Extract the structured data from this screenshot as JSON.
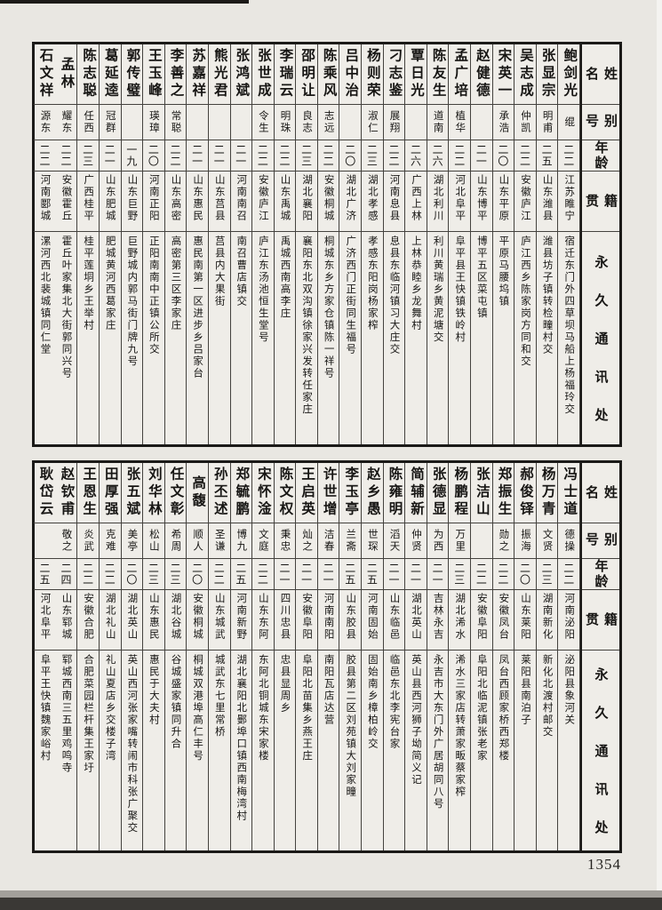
{
  "page_number": "1354",
  "header": {
    "name": "姓名",
    "alias": "别号",
    "age": "年龄",
    "native": "籍贯",
    "address": "永久通讯处"
  },
  "tables": [
    {
      "people": [
        {
          "name": "鲍剑光",
          "alias": "绲",
          "age": "二二",
          "native": "江苏睢宁",
          "address": "宿迁东门外四草坝马船上杨福玲交"
        },
        {
          "name": "张显宗",
          "alias": "明甫",
          "age": "二五",
          "native": "山东潍县",
          "address": "潍县坊子镇转检疃村交"
        },
        {
          "name": "吴志成",
          "alias": "仲凯",
          "age": "二二",
          "native": "安徽庐江",
          "address": "庐江西乡陈家岗方同和交"
        },
        {
          "name": "宋英一",
          "alias": "承浩",
          "age": "二〇",
          "native": "山东平原",
          "address": "平原马腰坞镇"
        },
        {
          "name": "赵健德",
          "alias": "",
          "age": "二一",
          "native": "山东博平",
          "address": "博平五区菜屯镇"
        },
        {
          "name": "孟广培",
          "alias": "植华",
          "age": "二二",
          "native": "河北阜平",
          "address": "阜平县王快镇铁岭村"
        },
        {
          "name": "陈友生",
          "alias": "道南",
          "age": "二六",
          "native": "湖北利川",
          "address": "利川黄瑞乡黄泥塘交"
        },
        {
          "name": "覃日光",
          "alias": "",
          "age": "二六",
          "native": "广西上林",
          "address": "上林恭睦乡龙舞村"
        },
        {
          "name": "刁志鉴",
          "alias": "展翔",
          "age": "二二",
          "native": "河南息县",
          "address": "息县东临河镇习大庄交"
        },
        {
          "name": "杨则荣",
          "alias": "淑仁",
          "age": "二三",
          "native": "湖北孝感",
          "address": "孝感东阳岗杨家榨"
        },
        {
          "name": "吕中治",
          "alias": "",
          "age": "二〇",
          "native": "湖北广济",
          "address": "广济西门正街同生福号"
        },
        {
          "name": "陈乘风",
          "alias": "志远",
          "age": "二二",
          "native": "安徽桐城",
          "address": "桐城东乡方家仓镇陈一祥号"
        },
        {
          "name": "邵明让",
          "alias": "良志",
          "age": "二三",
          "native": "湖北襄阳",
          "address": "襄阳东北双沟镇徐家兴发转任家庄"
        },
        {
          "name": "李瑞云",
          "alias": "明珠",
          "age": "二二",
          "native": "山东禹城",
          "address": "禹城西南高李庄"
        },
        {
          "name": "张世成",
          "alias": "令生",
          "age": "二二",
          "native": "安徽庐江",
          "address": "庐江东汤池恒生堂号"
        },
        {
          "name": "张鸿斌",
          "alias": "",
          "age": "二一",
          "native": "河南南召",
          "address": "南召曹店镇交"
        },
        {
          "name": "熊光君",
          "alias": "",
          "age": "二一",
          "native": "山东莒县",
          "address": "莒县内大果街"
        },
        {
          "name": "苏嘉祥",
          "alias": "",
          "age": "二一",
          "native": "山东惠民",
          "address": "惠民南第一区进步乡吕家台"
        },
        {
          "name": "李善之",
          "alias": "常聪",
          "age": "二二",
          "native": "山东高密",
          "address": "高密第三区李家庄"
        },
        {
          "name": "王玉峰",
          "alias": "瑛璋",
          "age": "二〇",
          "native": "河南正阳",
          "address": "正阳南南中正镇公所交"
        },
        {
          "name": "郭传璧",
          "alias": "",
          "age": "一九",
          "native": "山东巨野",
          "address": "巨野城内郭马街门牌九号"
        },
        {
          "name": "葛延逵",
          "alias": "冠群",
          "age": "二一",
          "native": "山东肥城",
          "address": "肥城黄河西葛家庄"
        },
        {
          "name": "陈志聪",
          "alias": "任西",
          "age": "二三",
          "native": "广西桂平",
          "address": "桂平莲垌乡王举村"
        },
        {
          "name": "孟林",
          "alias": "耀东",
          "age": "二二",
          "native": "安徽霍丘",
          "address": "霍丘叶家集北大街郭同兴号"
        },
        {
          "name": "石文祥",
          "alias": "源东",
          "age": "二二",
          "native": "河南郾城",
          "address": "漯河西北裴城镇同仁堂"
        }
      ]
    },
    {
      "people": [
        {
          "name": "冯士道",
          "alias": "德操",
          "age": "二二",
          "native": "河南泌阳",
          "address": "泌阳县象河关"
        },
        {
          "name": "杨万青",
          "alias": "文贤",
          "age": "二三",
          "native": "湖南新化",
          "address": "新化北渡村邮交"
        },
        {
          "name": "郝俊铎",
          "alias": "振海",
          "age": "二〇",
          "native": "山东莱阳",
          "address": "莱阳县南泊子"
        },
        {
          "name": "郑振生",
          "alias": "勋之",
          "age": "二二",
          "native": "安徽凤台",
          "address": "凤台西顾家桥西郑楼"
        },
        {
          "name": "张洁山",
          "alias": "",
          "age": "二二",
          "native": "安徽阜阳",
          "address": "阜阳北临泥镇张老家"
        },
        {
          "name": "杨鹏程",
          "alias": "万里",
          "age": "二三",
          "native": "湖北浠水",
          "address": "浠水三家店转萧家畈蔡家榨"
        },
        {
          "name": "张德显",
          "alias": "为西",
          "age": "二一",
          "native": "吉林永吉",
          "address": "永吉市大东门外广居胡同八号"
        },
        {
          "name": "简辅新",
          "alias": "仲贤",
          "age": "二一",
          "native": "湖北英山",
          "address": "英山县西河狮子坳简义记"
        },
        {
          "name": "陈雍明",
          "alias": "滔天",
          "age": "二一",
          "native": "山东临邑",
          "address": "临邑东北李宪台家"
        },
        {
          "name": "赵乡愚",
          "alias": "世琛",
          "age": "二五",
          "native": "河南固始",
          "address": "固始南乡樟柏岭交"
        },
        {
          "name": "李玉亭",
          "alias": "兰斋",
          "age": "二五",
          "native": "山东胶县",
          "address": "胶县第二区刘苑镇大刘家疃"
        },
        {
          "name": "许世增",
          "alias": "洁春",
          "age": "二一",
          "native": "河南南阳",
          "address": "南阳瓦店达营"
        },
        {
          "name": "王启英",
          "alias": "灿之",
          "age": "二一",
          "native": "安徽阜阳",
          "address": "阜阳北苗集乡燕王庄"
        },
        {
          "name": "陈文权",
          "alias": "秉忠",
          "age": "二一",
          "native": "四川忠县",
          "address": "忠县显周乡"
        },
        {
          "name": "宋怀淦",
          "alias": "文庭",
          "age": "二二",
          "native": "山东东阿",
          "address": "东阿北铜城东宋家楼"
        },
        {
          "name": "郑毓鹏",
          "alias": "博九",
          "age": "二五",
          "native": "河南新野",
          "address": "湖北襄阳北鄤埠口镇西南梅湾村"
        },
        {
          "name": "孙丕述",
          "alias": "圣谦",
          "age": "二二",
          "native": "山东城武",
          "address": "城武东七里常桥"
        },
        {
          "name": "高馥",
          "alias": "顺人",
          "age": "二〇",
          "native": "安徽桐城",
          "address": "桐城双港埠高仁丰号"
        },
        {
          "name": "任文彰",
          "alias": "希周",
          "age": "二三",
          "native": "湖北谷城",
          "address": "谷城盛家镇同升合"
        },
        {
          "name": "刘华林",
          "alias": "松山",
          "age": "二三",
          "native": "山东惠民",
          "address": "惠民于大夫村"
        },
        {
          "name": "张五斌",
          "alias": "美亭",
          "age": "二〇",
          "native": "湖北英山",
          "address": "英山西河张家嘴转闹市科张广聚交"
        },
        {
          "name": "田厚强",
          "alias": "克难",
          "age": "二二",
          "native": "湖北礼山",
          "address": "礼山夏店乡交楼子湾"
        },
        {
          "name": "王恩生",
          "alias": "炎武",
          "age": "二二",
          "native": "安徽合肥",
          "address": "合肥菜园栏杆集王家圩"
        },
        {
          "name": "赵钦甫",
          "alias": "敬之",
          "age": "二四",
          "native": "山东郓城",
          "address": "郓城西南三五里鸡鸣寺"
        },
        {
          "name": "耿岱云",
          "alias": "",
          "age": "二五",
          "native": "河北阜平",
          "address": "阜平王快镇魏家峪村"
        }
      ]
    }
  ]
}
